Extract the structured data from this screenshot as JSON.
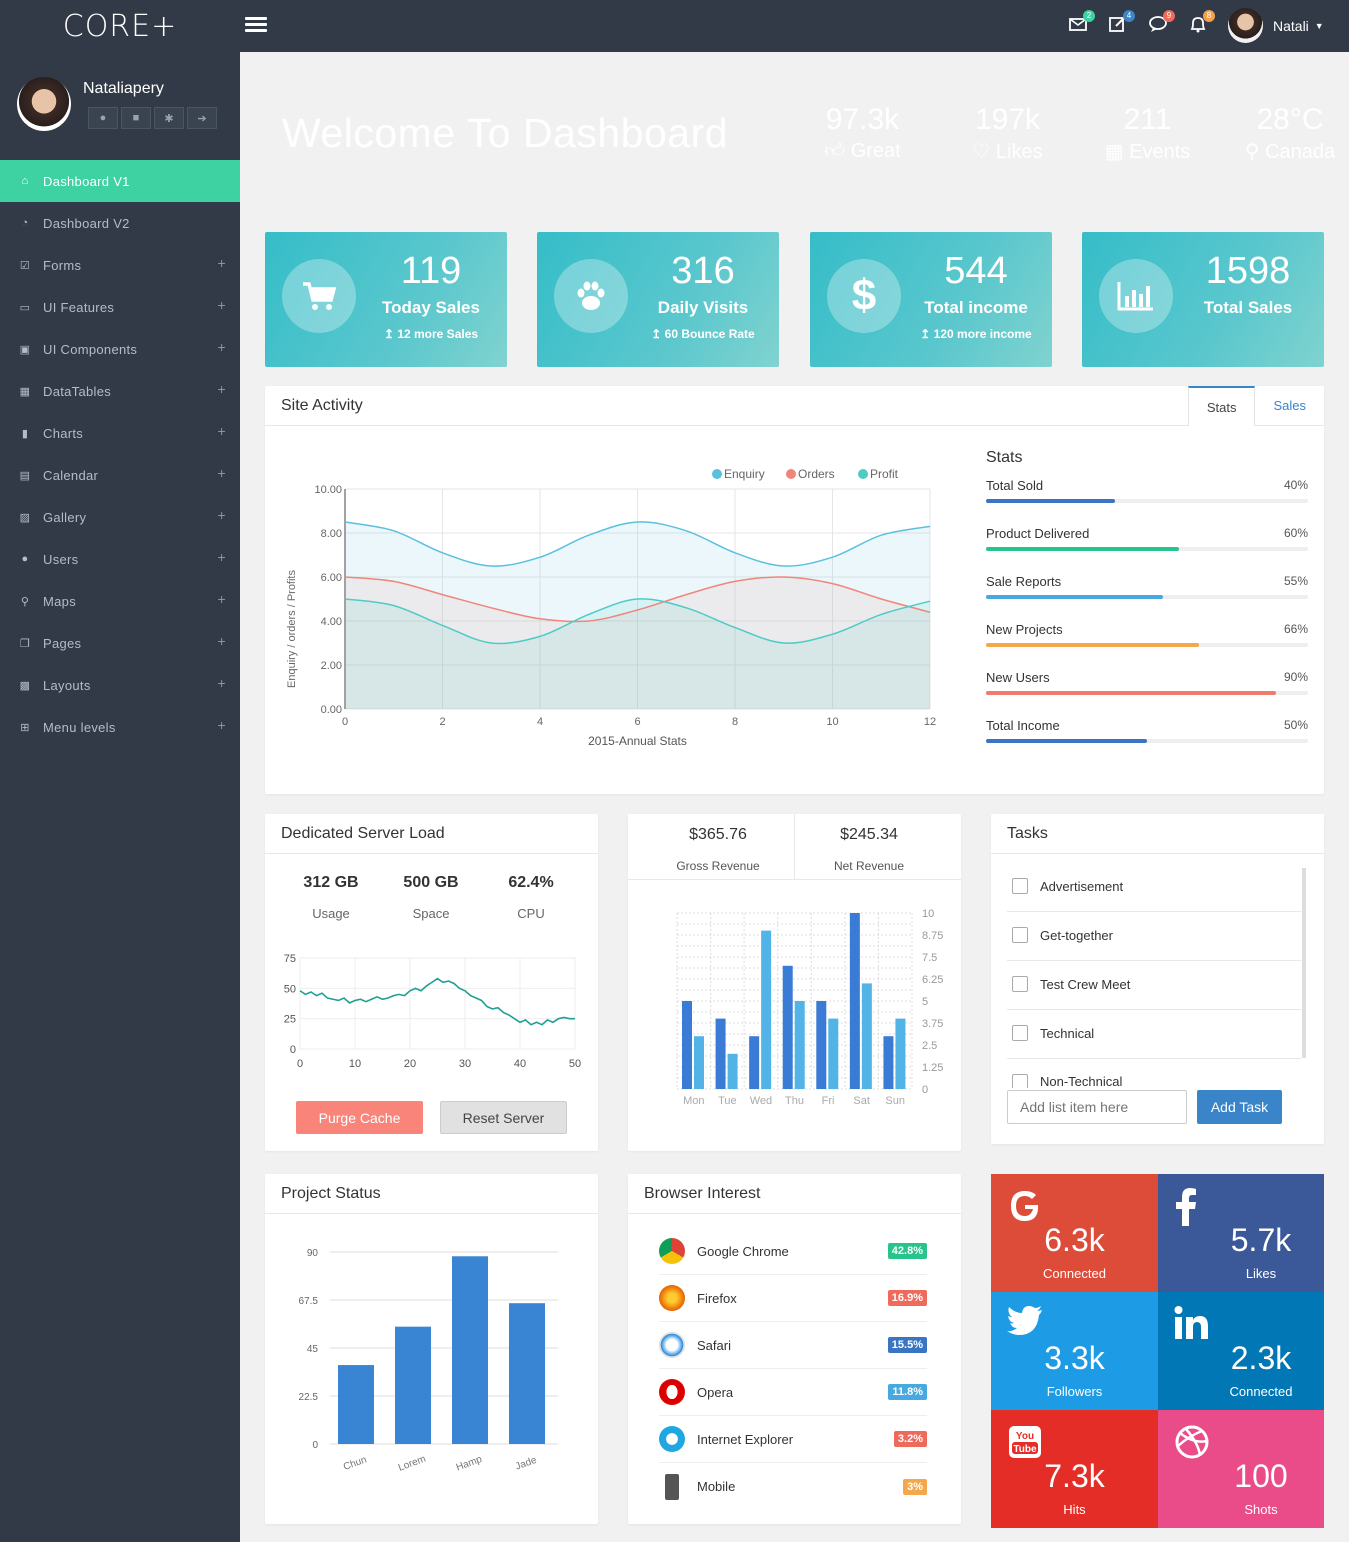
{
  "app": {
    "logo": "CORE+",
    "user": "Natali"
  },
  "top_badges": [
    {
      "icon": "mail-icon",
      "count": "2",
      "color": "#3ed1a2"
    },
    {
      "icon": "edit-icon",
      "count": "4",
      "color": "#3a84c9"
    },
    {
      "icon": "chat-icon",
      "count": "9",
      "color": "#f06a5b"
    },
    {
      "icon": "bell-icon",
      "count": "8",
      "color": "#f5a14b"
    }
  ],
  "profile": {
    "name": "Nataliapery"
  },
  "menu": [
    {
      "label": "Dashboard V1",
      "icon": "home-icon"
    },
    {
      "label": "Dashboard V2",
      "icon": "dashboard-icon"
    },
    {
      "label": "Forms",
      "icon": "check-square-icon"
    },
    {
      "label": "UI Features",
      "icon": "desktop-icon"
    },
    {
      "label": "UI Components",
      "icon": "briefcase-icon"
    },
    {
      "label": "DataTables",
      "icon": "table-icon"
    },
    {
      "label": "Charts",
      "icon": "bar-chart-icon"
    },
    {
      "label": "Calendar",
      "icon": "calendar-icon"
    },
    {
      "label": "Gallery",
      "icon": "image-icon"
    },
    {
      "label": "Users",
      "icon": "users-icon"
    },
    {
      "label": "Maps",
      "icon": "map-marker-icon"
    },
    {
      "label": "Pages",
      "icon": "copy-icon"
    },
    {
      "label": "Layouts",
      "icon": "grid-icon"
    },
    {
      "label": "Menu levels",
      "icon": "sitemap-icon"
    }
  ],
  "header": {
    "title": "Welcome To Dashboard",
    "stats": [
      {
        "value": "97.3k",
        "label": "Great",
        "icon": "thumbs-up-icon"
      },
      {
        "value": "197k",
        "label": "Likes",
        "icon": "heart-icon"
      },
      {
        "value": "211",
        "label": "Events",
        "icon": "calendar-icon"
      },
      {
        "value": "28°C",
        "label": "Canada",
        "icon": "map-marker-icon"
      }
    ]
  },
  "cards": [
    {
      "value": "119",
      "label": "Today Sales",
      "sub": "↥ 12 more Sales",
      "icon": "cart-icon"
    },
    {
      "value": "316",
      "label": "Daily Visits",
      "sub": "↥ 60 Bounce Rate",
      "icon": "paw-icon"
    },
    {
      "value": "544",
      "label": "Total income",
      "sub": "↥ 120 more income",
      "icon": "dollar-icon"
    },
    {
      "value": "1598",
      "label": "Total Sales",
      "sub": "",
      "icon": "bar-chart-icon"
    }
  ],
  "site_activity": {
    "title": "Site Activity",
    "tabs": [
      "Stats",
      "Sales"
    ],
    "stats_title": "Stats",
    "stats": [
      {
        "label": "Total Sold",
        "pct": "40%",
        "value": 40,
        "color": "#3a75c4"
      },
      {
        "label": "Product Delivered",
        "pct": "60%",
        "value": 60,
        "color": "#27c48b"
      },
      {
        "label": "Sale Reports",
        "pct": "55%",
        "value": 55,
        "color": "#47a9df"
      },
      {
        "label": "New Projects",
        "pct": "66%",
        "value": 66,
        "color": "#f5a84b"
      },
      {
        "label": "New Users",
        "pct": "90%",
        "value": 90,
        "color": "#f07a6e"
      },
      {
        "label": "Total Income",
        "pct": "50%",
        "value": 50,
        "color": "#3a75c4"
      }
    ]
  },
  "server": {
    "title": "Dedicated Server Load",
    "metrics": [
      {
        "value": "312 GB",
        "label": "Usage"
      },
      {
        "value": "500 GB",
        "label": "Space"
      },
      {
        "value": "62.4%",
        "label": "CPU"
      }
    ],
    "buttons": {
      "purge": "Purge Cache",
      "reset": "Reset Server"
    }
  },
  "revenue": {
    "gross": "$365.76",
    "gross_label": "Gross Revenue",
    "net": "$245.34",
    "net_label": "Net Revenue"
  },
  "tasks": {
    "title": "Tasks",
    "items": [
      "Advertisement",
      "Get-together",
      "Test Crew Meet",
      "Technical",
      "Non-Technical"
    ],
    "placeholder": "Add list item here",
    "add": "Add Task"
  },
  "project": {
    "title": "Project Status"
  },
  "browser": {
    "title": "Browser Interest",
    "items": [
      {
        "name": "Google Chrome",
        "pct": "42.8%",
        "color": "#27c48b",
        "icon": "chrome-icon"
      },
      {
        "name": "Firefox",
        "pct": "16.9%",
        "color": "#f06a5b",
        "icon": "firefox-icon"
      },
      {
        "name": "Safari",
        "pct": "15.5%",
        "color": "#3a75c4",
        "icon": "safari-icon"
      },
      {
        "name": "Opera",
        "pct": "11.8%",
        "color": "#47a9df",
        "icon": "opera-icon"
      },
      {
        "name": "Internet Explorer",
        "pct": "3.2%",
        "color": "#f06a5b",
        "icon": "ie-icon"
      },
      {
        "name": "Mobile",
        "pct": "3%",
        "color": "#f5a84b",
        "icon": "mobile-icon"
      }
    ]
  },
  "social": [
    {
      "value": "6.3k",
      "label": "Connected",
      "icon": "google-icon",
      "color": "#dd4b39"
    },
    {
      "value": "5.7k",
      "label": "Likes",
      "icon": "facebook-icon",
      "color": "#3b5998"
    },
    {
      "value": "3.3k",
      "label": "Followers",
      "icon": "twitter-icon",
      "color": "#1d9be5"
    },
    {
      "value": "2.3k",
      "label": "Connected",
      "icon": "linkedin-icon",
      "color": "#0177b5"
    },
    {
      "value": "7.3k",
      "label": "Hits",
      "icon": "youtube-icon",
      "color": "#e52d27"
    },
    {
      "value": "100",
      "label": "Shots",
      "icon": "dribbble-icon",
      "color": "#ea4c89"
    }
  ],
  "chart_data": [
    {
      "type": "area",
      "x": [
        0,
        1,
        2,
        3,
        4,
        5,
        6,
        7,
        8,
        9,
        10,
        11,
        12
      ],
      "xlabel": "2015-Annual Stats",
      "ylabel": "Enquiry / orders / Profits",
      "ylim": [
        0,
        10
      ],
      "yticks": [
        "10.00",
        "8.00",
        "6.00",
        "4.00",
        "2.00",
        "0.00"
      ],
      "xticks": [
        "0",
        "2",
        "4",
        "6",
        "8",
        "10",
        "12"
      ],
      "legend": "top-right",
      "series": [
        {
          "name": "Enquiry",
          "color": "#5bc0de",
          "values": [
            8.5,
            8.1,
            7.1,
            6.5,
            6.9,
            7.9,
            8.5,
            8.1,
            7.1,
            6.5,
            6.9,
            7.9,
            8.3
          ]
        },
        {
          "name": "Orders",
          "color": "#f0857a",
          "values": [
            6.0,
            5.8,
            5.2,
            4.6,
            4.1,
            4.0,
            4.5,
            5.2,
            5.8,
            6.0,
            5.7,
            5.0,
            4.4
          ]
        },
        {
          "name": "Profit",
          "color": "#4ecbc4",
          "values": [
            5.0,
            4.7,
            3.8,
            3.0,
            3.3,
            4.3,
            5.0,
            4.6,
            3.7,
            3.0,
            3.4,
            4.3,
            4.9
          ]
        }
      ]
    },
    {
      "type": "line",
      "title": "Server Load",
      "xlim": [
        0,
        50
      ],
      "ylim": [
        0,
        75
      ],
      "yticks": [
        "75",
        "50",
        "25",
        "0"
      ],
      "xticks": [
        "0",
        "10",
        "20",
        "30",
        "40",
        "50"
      ],
      "series": [
        {
          "name": "",
          "color": "#20a090",
          "values": [
            48,
            45,
            47,
            44,
            46,
            42,
            41,
            40,
            42,
            38,
            40,
            41,
            39,
            41,
            43,
            41,
            42,
            44,
            45,
            44,
            48,
            50,
            48,
            52,
            55,
            58,
            55,
            56,
            54,
            50,
            48,
            44,
            42,
            40,
            35,
            33,
            34,
            30,
            28,
            25,
            22,
            24,
            20,
            22,
            20,
            24,
            22,
            25,
            26,
            25,
            25
          ]
        }
      ]
    },
    {
      "type": "bar",
      "categories": [
        "Mon",
        "Tue",
        "Wed",
        "Thu",
        "Fri",
        "Sat",
        "Sun"
      ],
      "ylim": [
        0,
        10
      ],
      "yticks": [
        "10",
        "8.75",
        "7.5",
        "6.25",
        "5",
        "3.75",
        "2.5",
        "1.25",
        "0"
      ],
      "series": [
        {
          "name": "",
          "color": "#3a7bd5",
          "values": [
            5,
            4,
            3,
            7,
            5,
            10,
            3
          ]
        },
        {
          "name": "",
          "color": "#52b3e6",
          "values": [
            3,
            2,
            9,
            5,
            4,
            6,
            4
          ]
        }
      ]
    },
    {
      "type": "bar",
      "categories": [
        "Chun",
        "Lorem",
        "Hamp",
        "Jade"
      ],
      "values": [
        37,
        55,
        88,
        66
      ],
      "ylim": [
        0,
        90
      ],
      "yticks": [
        "90",
        "67.5",
        "45",
        "22.5",
        "0"
      ],
      "color": "#3a85d3"
    }
  ]
}
